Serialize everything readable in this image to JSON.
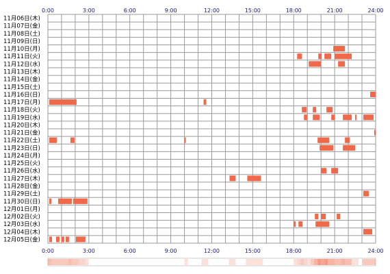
{
  "chart_data": {
    "type": "heatmap",
    "x_ticks": [
      "0:00",
      "3:00",
      "6:00",
      "9:00",
      "12:00",
      "15:00",
      "18:00",
      "21:00",
      "24:00"
    ],
    "x_range_hours": [
      0,
      24
    ],
    "grid": true,
    "rows": [
      "11月06日(木)",
      "11月07日(金)",
      "11月08日(土)",
      "11月09日(日)",
      "11月10日(月)",
      "11月11日(火)",
      "11月12日(水)",
      "11月13日(木)",
      "11月14日(金)",
      "11月15日(土)",
      "11月16日(日)",
      "11月17日(月)",
      "11月18日(火)",
      "11月19日(水)",
      "11月20日(木)",
      "11月21日(金)",
      "11月22日(土)",
      "11月23日(日)",
      "11月24日(月)",
      "11月25日(火)",
      "11月26日(水)",
      "11月27日(木)",
      "11月28日(金)",
      "11月29日(土)",
      "11月30日(日)",
      "12月01日(月)",
      "12月02日(火)",
      "12月03日(水)",
      "12月04日(木)",
      "12月05日(金)"
    ],
    "colors": {
      "activity": "#f0694a",
      "summary_strip": "#f0694a",
      "grid": "#9a9a9a"
    },
    "activity": [
      {
        "row": 4,
        "start": 20.9,
        "end": 21.75
      },
      {
        "row": 5,
        "start": 18.25,
        "end": 18.6
      },
      {
        "row": 5,
        "start": 19.8,
        "end": 20.05
      },
      {
        "row": 5,
        "start": 20.25,
        "end": 20.75
      },
      {
        "row": 5,
        "start": 21.0,
        "end": 22.25
      },
      {
        "row": 6,
        "start": 19.1,
        "end": 20.0
      },
      {
        "row": 6,
        "start": 21.25,
        "end": 21.75
      },
      {
        "row": 10,
        "start": 23.6,
        "end": 24.0
      },
      {
        "row": 11,
        "start": 0.1,
        "end": 2.1
      },
      {
        "row": 11,
        "start": 11.4,
        "end": 11.6
      },
      {
        "row": 12,
        "start": 18.6,
        "end": 18.95
      },
      {
        "row": 12,
        "start": 19.4,
        "end": 19.65
      },
      {
        "row": 12,
        "start": 20.4,
        "end": 20.85
      },
      {
        "row": 13,
        "start": 18.75,
        "end": 19.0
      },
      {
        "row": 13,
        "start": 19.4,
        "end": 19.9
      },
      {
        "row": 13,
        "start": 20.75,
        "end": 21.0
      },
      {
        "row": 13,
        "start": 21.6,
        "end": 22.25
      },
      {
        "row": 13,
        "start": 22.5,
        "end": 22.6
      },
      {
        "row": 13,
        "start": 23.1,
        "end": 23.85
      },
      {
        "row": 15,
        "start": 23.9,
        "end": 24.0
      },
      {
        "row": 16,
        "start": 0.1,
        "end": 0.65
      },
      {
        "row": 16,
        "start": 1.65,
        "end": 1.95
      },
      {
        "row": 16,
        "start": 10.0,
        "end": 10.1
      },
      {
        "row": 16,
        "start": 19.75,
        "end": 20.6
      },
      {
        "row": 16,
        "start": 21.75,
        "end": 22.1
      },
      {
        "row": 17,
        "start": 19.9,
        "end": 20.9
      },
      {
        "row": 17,
        "start": 21.6,
        "end": 22.5
      },
      {
        "row": 20,
        "start": 20.0,
        "end": 20.4
      },
      {
        "row": 20,
        "start": 20.75,
        "end": 21.25
      },
      {
        "row": 21,
        "start": 13.3,
        "end": 13.75
      },
      {
        "row": 21,
        "start": 14.6,
        "end": 15.6
      },
      {
        "row": 23,
        "start": 23.1,
        "end": 23.5
      },
      {
        "row": 24,
        "start": 0.1,
        "end": 0.25
      },
      {
        "row": 24,
        "start": 0.75,
        "end": 1.75
      },
      {
        "row": 24,
        "start": 1.85,
        "end": 2.9
      },
      {
        "row": 26,
        "start": 19.55,
        "end": 19.8
      },
      {
        "row": 26,
        "start": 20.0,
        "end": 20.35
      },
      {
        "row": 26,
        "start": 21.15,
        "end": 21.4
      },
      {
        "row": 27,
        "start": 18.0,
        "end": 18.15
      },
      {
        "row": 27,
        "start": 18.35,
        "end": 18.65
      },
      {
        "row": 27,
        "start": 19.6,
        "end": 20.6
      },
      {
        "row": 28,
        "start": 23.1,
        "end": 23.75
      },
      {
        "row": 29,
        "start": 0.1,
        "end": 0.3
      },
      {
        "row": 29,
        "start": 0.6,
        "end": 0.85
      },
      {
        "row": 29,
        "start": 1.0,
        "end": 1.2
      },
      {
        "row": 29,
        "start": 1.3,
        "end": 1.55
      },
      {
        "row": 29,
        "start": 2.05,
        "end": 2.75
      }
    ]
  }
}
